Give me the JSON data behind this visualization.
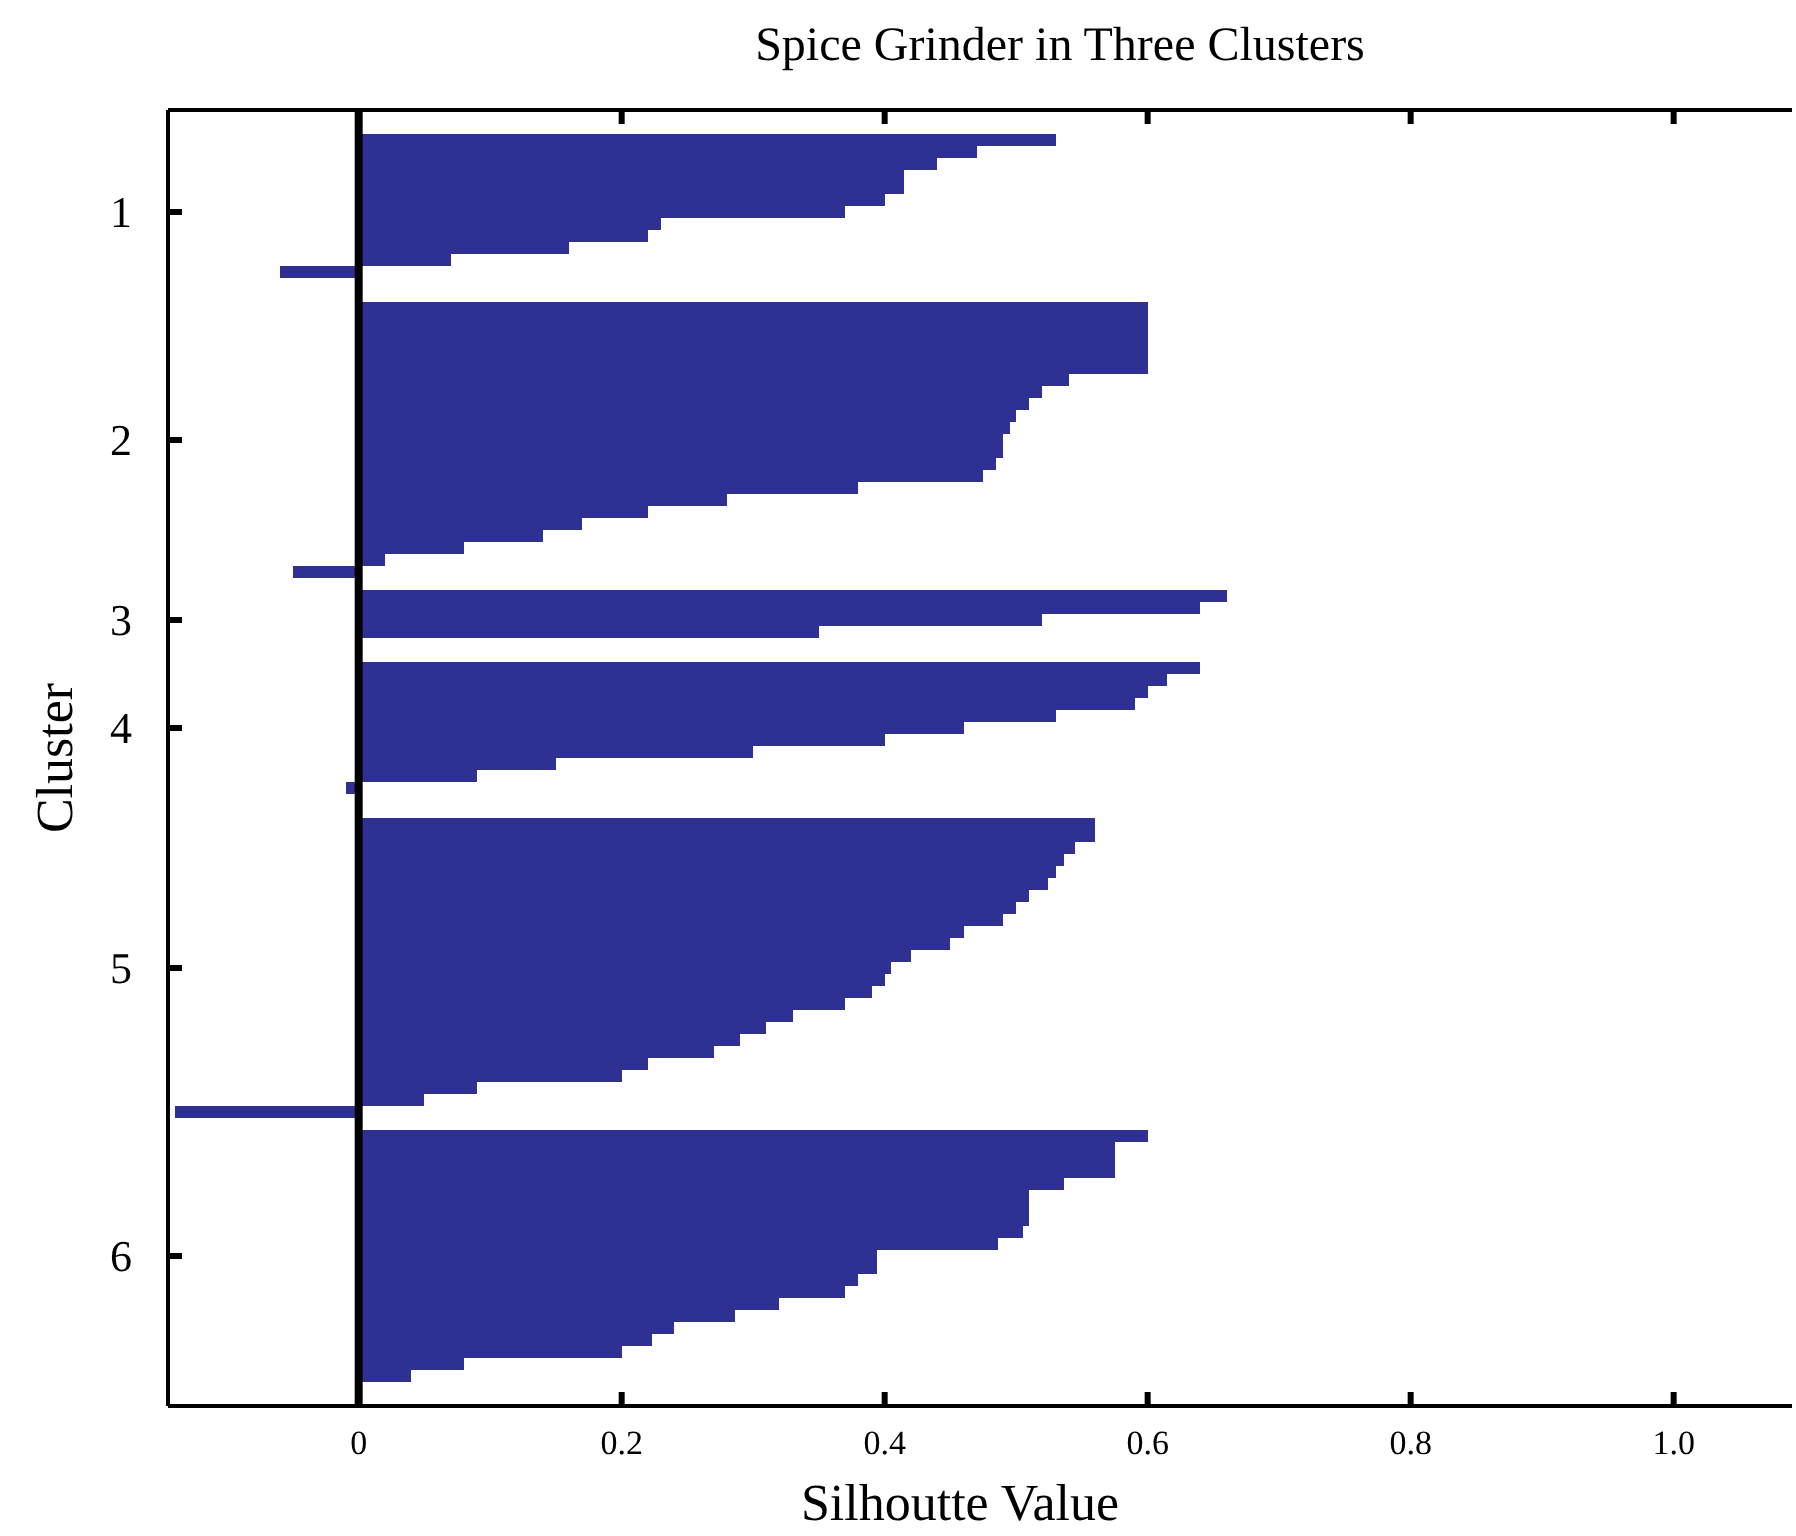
{
  "chart_data": {
    "type": "bar",
    "orientation": "horizontal",
    "title": "Spice Grinder in Three Clusters",
    "xlabel": "Silhoutte Value",
    "ylabel": "Cluster",
    "categories": [
      null,
      null,
      null,
      null,
      null,
      null,
      null,
      null,
      "1",
      null,
      null,
      null,
      null,
      null,
      null,
      null,
      null,
      null,
      null,
      null,
      null,
      null,
      null,
      null,
      null,
      null,
      null,
      "2",
      null,
      null,
      null,
      null,
      null,
      null,
      null,
      null,
      null,
      null,
      null,
      null,
      null,
      null,
      "3",
      null,
      null,
      null,
      null,
      null,
      null,
      null,
      null,
      "4",
      null,
      null,
      null,
      null,
      null,
      null,
      null,
      null,
      null,
      null,
      null,
      null,
      null,
      null,
      null,
      null,
      null,
      null,
      null,
      "5",
      null,
      null,
      null,
      null,
      null,
      null,
      null,
      null,
      null,
      null,
      null,
      null,
      null,
      null,
      null,
      null,
      null,
      null,
      null,
      null,
      null,
      null,
      null,
      "6",
      null,
      null,
      null,
      null,
      null,
      null,
      null,
      null,
      null,
      null,
      null,
      null
    ],
    "values": [
      null,
      null,
      0.53,
      0.47,
      0.44,
      0.415,
      0.415,
      0.4,
      0.37,
      0.23,
      0.22,
      0.16,
      0.07,
      -0.06,
      null,
      null,
      0.6,
      0.6,
      0.6,
      0.6,
      0.6,
      0.6,
      0.54,
      0.52,
      0.51,
      0.5,
      0.495,
      0.49,
      0.49,
      0.485,
      0.475,
      0.38,
      0.28,
      0.22,
      0.17,
      0.14,
      0.08,
      0.02,
      -0.05,
      null,
      0.66,
      0.64,
      0.52,
      0.35,
      null,
      null,
      0.64,
      0.615,
      0.6,
      0.59,
      0.53,
      0.46,
      0.4,
      0.3,
      0.15,
      0.09,
      -0.01,
      null,
      null,
      0.56,
      0.56,
      0.545,
      0.536,
      0.53,
      0.524,
      0.51,
      0.5,
      0.49,
      0.46,
      0.45,
      0.42,
      0.405,
      0.4,
      0.39,
      0.37,
      0.33,
      0.31,
      0.29,
      0.27,
      0.22,
      0.2,
      0.09,
      0.05,
      -0.14,
      null,
      0.6,
      0.575,
      0.575,
      0.575,
      0.536,
      0.51,
      0.51,
      0.51,
      0.505,
      0.486,
      0.394,
      0.394,
      0.38,
      0.37,
      0.32,
      0.286,
      0.24,
      0.223,
      0.2,
      0.08,
      0.04,
      null,
      null
    ],
    "color": "#2e3192",
    "xlim": [
      -0.145,
      1.09
    ],
    "xticks": [
      0,
      0.2,
      0.4,
      0.6,
      0.8,
      {
        "value": 1,
        "label": "1.0"
      }
    ],
    "ref_lines": [
      {
        "axis": "x",
        "value": 0,
        "color": "#000000"
      }
    ],
    "grid": false
  }
}
